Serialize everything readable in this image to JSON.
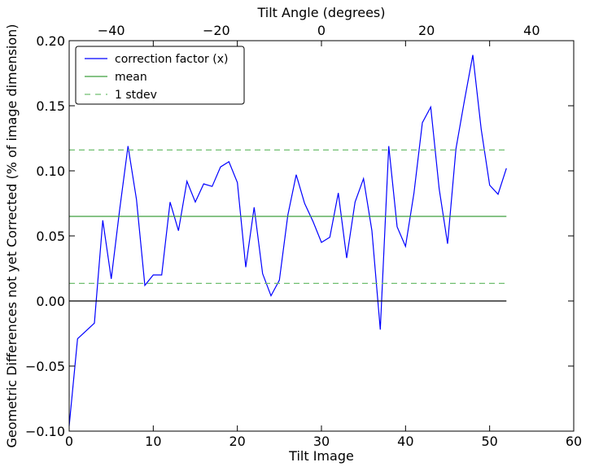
{
  "chart_data": {
    "type": "line",
    "xlabel": "Tilt Image",
    "ylabel": "Geometric Differences not yet Corrected (% of image dimension)",
    "x2label": "Tilt Angle (degrees)",
    "xlim": [
      0,
      60
    ],
    "ylim": [
      -0.1,
      0.2
    ],
    "x2lim": [
      -48,
      48
    ],
    "xticks": [
      "0",
      "10",
      "20",
      "30",
      "40",
      "50",
      "60"
    ],
    "yticks": [
      "−0.10",
      "−0.05",
      "0.00",
      "0.05",
      "0.10",
      "0.15",
      "0.20"
    ],
    "x2ticks": [
      "−40",
      "−20",
      "0",
      "20",
      "40"
    ],
    "x2tick_values": [
      -40,
      -20,
      0,
      20,
      40
    ],
    "xtick_values": [
      0,
      10,
      20,
      30,
      40,
      50,
      60
    ],
    "ytick_values": [
      -0.1,
      -0.05,
      0,
      0.05,
      0.1,
      0.15,
      0.2
    ],
    "legend_position": "top-left",
    "grid": false,
    "series": [
      {
        "name": "correction factor (x)",
        "color": "#0000ff",
        "style": "solid",
        "x": [
          0,
          1,
          2,
          3,
          4,
          5,
          6,
          7,
          8,
          9,
          10,
          11,
          12,
          13,
          14,
          15,
          16,
          17,
          18,
          19,
          20,
          21,
          22,
          23,
          24,
          25,
          26,
          27,
          28,
          29,
          30,
          31,
          32,
          33,
          34,
          35,
          36,
          37,
          38,
          39,
          40,
          41,
          42,
          43,
          44,
          45,
          46,
          47,
          48,
          49,
          50,
          51,
          52
        ],
        "values": [
          -0.096,
          -0.029,
          -0.023,
          -0.017,
          0.062,
          0.017,
          0.07,
          0.119,
          0.078,
          0.012,
          0.02,
          0.02,
          0.076,
          0.054,
          0.092,
          0.076,
          0.09,
          0.088,
          0.103,
          0.107,
          0.091,
          0.026,
          0.072,
          0.021,
          0.004,
          0.016,
          0.066,
          0.097,
          0.075,
          0.061,
          0.045,
          0.049,
          0.083,
          0.033,
          0.076,
          0.094,
          0.054,
          -0.022,
          0.119,
          0.057,
          0.042,
          0.083,
          0.137,
          0.149,
          0.086,
          0.044,
          0.117,
          0.154,
          0.189,
          0.132,
          0.089,
          0.082,
          0.102
        ]
      },
      {
        "name": "mean",
        "color": "#3f9f3f",
        "style": "solid",
        "x": [
          0,
          52
        ],
        "values": [
          0.065,
          0.065
        ]
      },
      {
        "name": "1 stdev",
        "color": "#6fbf6f",
        "style": "dashed",
        "x": [
          0,
          52
        ],
        "values": [
          0.116,
          0.116
        ]
      },
      {
        "name": "",
        "color": "#6fbf6f",
        "style": "dashed",
        "x": [
          0,
          52
        ],
        "values": [
          0.0135,
          0.0135
        ]
      },
      {
        "name": "",
        "color": "#000000",
        "style": "solid",
        "x": [
          0,
          52
        ],
        "values": [
          0,
          0
        ]
      }
    ]
  }
}
